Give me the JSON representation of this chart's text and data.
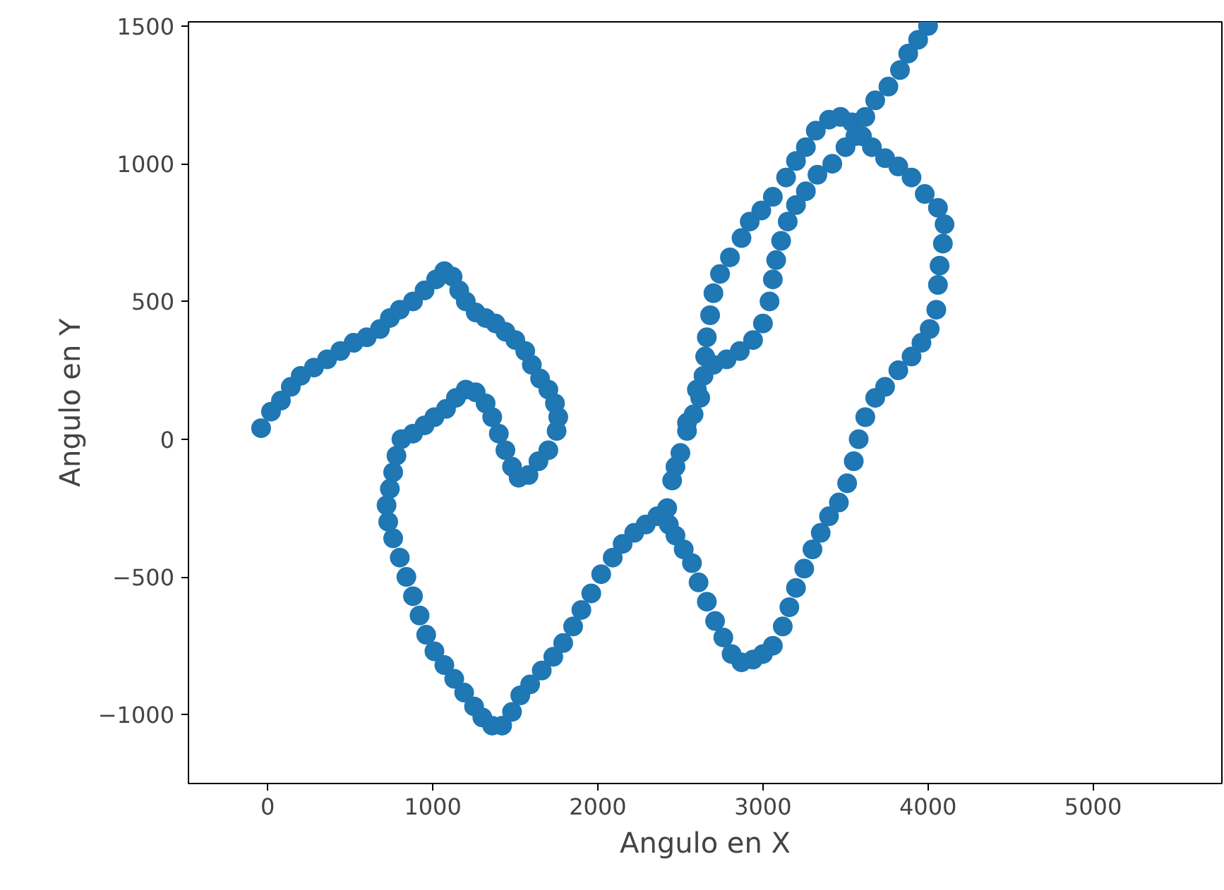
{
  "chart_data": {
    "type": "scatter",
    "xlabel": "Angulo en X",
    "ylabel": "Angulo en Y",
    "marker": "circle",
    "grid": false,
    "xlim": [
      -480,
      5780
    ],
    "ylim": [
      -1250,
      1515
    ],
    "xticks": [
      0,
      1000,
      2000,
      3000,
      4000,
      5000
    ],
    "yticks": [
      {
        "value": -1000,
        "label": "−1000"
      },
      {
        "value": -500,
        "label": "−500"
      },
      0,
      500,
      1000,
      1500
    ],
    "series": [
      {
        "color": "#1f77b4",
        "x": [
          -40,
          20,
          80,
          140,
          200,
          280,
          360,
          440,
          520,
          600,
          680,
          740,
          800,
          880,
          950,
          1020,
          1070,
          1120,
          1160,
          1200,
          1260,
          1320,
          1380,
          1440,
          1500,
          1560,
          1600,
          1650,
          1700,
          1740,
          1760,
          1750,
          1700,
          1640,
          1580,
          1520,
          1480,
          1440,
          1400,
          1360,
          1320,
          1260,
          1200,
          1140,
          1080,
          1010,
          950,
          880,
          810,
          780,
          760,
          740,
          720,
          730,
          760,
          800,
          840,
          880,
          920,
          960,
          1010,
          1070,
          1130,
          1190,
          1250,
          1300,
          1360,
          1420,
          1480,
          1530,
          1590,
          1660,
          1730,
          1790,
          1850,
          1900,
          1960,
          2020,
          2090,
          2150,
          2220,
          2290,
          2360,
          2420,
          2450,
          2500,
          2540,
          2580,
          2620,
          2640,
          2650,
          2660,
          2680,
          2700,
          2740,
          2800,
          2870,
          2920,
          2990,
          3060,
          3140,
          3200,
          3260,
          3320,
          3400,
          3470,
          3540,
          3600,
          3660,
          3740,
          3820,
          3900,
          3980,
          4060,
          4100,
          4090,
          4070,
          4060,
          4050,
          4010,
          3960,
          3900,
          3820,
          3740,
          3680,
          3620,
          3580,
          3550,
          3510,
          3460,
          3400,
          3350,
          3300,
          3250,
          3200,
          3160,
          3120,
          3060,
          3000,
          2940,
          2870,
          2810,
          2760,
          2710,
          2660,
          2610,
          2570,
          2520,
          2470,
          2430,
          2470,
          2540,
          2600,
          2700,
          2780,
          2860,
          2940,
          3000,
          3040,
          3060,
          3080,
          3110,
          3150,
          3200,
          3260,
          3330,
          3420,
          3500,
          3560,
          3620,
          3680,
          3760,
          3830,
          3880,
          3940,
          4000
        ],
        "values": [
          40,
          100,
          140,
          190,
          230,
          260,
          290,
          320,
          350,
          370,
          400,
          440,
          470,
          500,
          540,
          580,
          610,
          590,
          540,
          500,
          460,
          440,
          420,
          390,
          360,
          320,
          270,
          220,
          180,
          130,
          80,
          30,
          -40,
          -80,
          -130,
          -140,
          -100,
          -40,
          20,
          80,
          130,
          170,
          180,
          150,
          110,
          80,
          50,
          20,
          0,
          -60,
          -120,
          -180,
          -240,
          -300,
          -360,
          -430,
          -500,
          -570,
          -640,
          -710,
          -770,
          -820,
          -870,
          -920,
          -970,
          -1010,
          -1040,
          -1040,
          -990,
          -930,
          -890,
          -840,
          -790,
          -740,
          -680,
          -620,
          -560,
          -490,
          -430,
          -380,
          -340,
          -310,
          -280,
          -250,
          -150,
          -50,
          30,
          90,
          150,
          230,
          300,
          370,
          450,
          530,
          600,
          660,
          730,
          790,
          830,
          880,
          950,
          1010,
          1060,
          1120,
          1160,
          1170,
          1150,
          1100,
          1060,
          1020,
          990,
          950,
          890,
          840,
          780,
          710,
          630,
          560,
          470,
          400,
          350,
          300,
          250,
          190,
          150,
          80,
          0,
          -80,
          -160,
          -230,
          -280,
          -340,
          -400,
          -470,
          -540,
          -610,
          -680,
          -750,
          -780,
          -800,
          -810,
          -780,
          -720,
          -660,
          -590,
          -520,
          -450,
          -400,
          -350,
          -310,
          -100,
          60,
          180,
          270,
          290,
          320,
          360,
          420,
          500,
          580,
          650,
          720,
          790,
          850,
          900,
          960,
          1000,
          1060,
          1100,
          1170,
          1230,
          1280,
          1340,
          1400,
          1450,
          1500
        ]
      }
    ]
  }
}
